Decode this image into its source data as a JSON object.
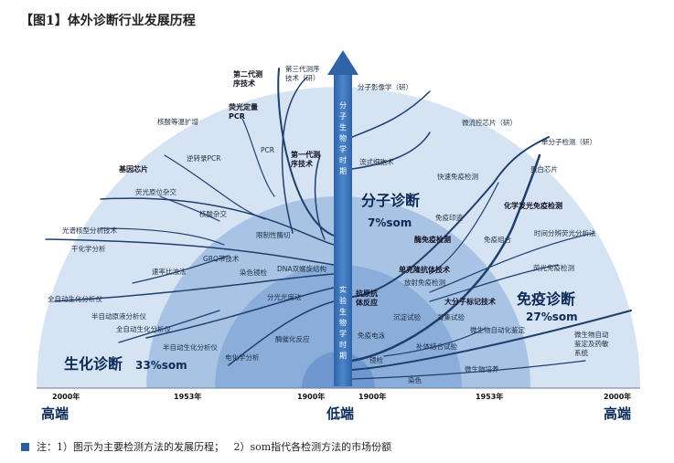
{
  "title": "【图1】体外诊断行业发展历程",
  "note": "注：1）图示为主要检测方法的发展历程；   2）som指代各检测方法的市场份额",
  "axis": {
    "left_year": "2000年",
    "mid_left_year": "1953年",
    "center_left_year": "1900年",
    "center_right_year": "1900年",
    "mid_right_year": "1953年",
    "right_year": "2000年",
    "left_label": "高端",
    "center_label": "低端",
    "right_label": "高端"
  },
  "vertical": {
    "top": "分子生物学时期",
    "bottom": "实验生物学时期"
  },
  "segments": {
    "bio": {
      "name": "生化诊断",
      "share": "33%som"
    },
    "mol": {
      "name": "分子诊断",
      "share": "7%som"
    },
    "imm": {
      "name": "免疫诊断",
      "share": "27%som"
    }
  },
  "left_labels": [
    "第二代测序技术",
    "第三代测序技术（研）",
    "荧光定量PCR",
    "核酸等温扩增",
    "PCR",
    "逆转录PCR",
    "基因芯片",
    "第一代测序技术",
    "荧光原位杂交",
    "核酸杂交",
    "光谱核型分析技术",
    "限制性酶切",
    "干化学分析",
    "GRQ带技术",
    "速率比浊法",
    "染色镜检",
    "DNA双螺旋结构",
    "全自动生化分析仪",
    "分光光度法",
    "半自动原液分析仪",
    "全自动生化分析仪",
    "酶催化反应",
    "半自动生化分析仪",
    "电化学分析"
  ],
  "right_labels": [
    "分子影像学（研）",
    "流式细胞术",
    "微流控芯片（研）",
    "单分子检测（研）",
    "蛋白芯片",
    "快速免疫检测",
    "化学发光免疫检测",
    "免疫印迹",
    "酶免疫检测",
    "免疫组合",
    "时间分辨荧光分析法",
    "荧光免疫检测",
    "单克隆抗体技术",
    "放射免疫检测",
    "大分子标记技术",
    "抗原抗体反应",
    "沉淀试验",
    "凝集试验",
    "免疫电泳",
    "补体结合试验",
    "微生物自动化鉴定",
    "微生物自动鉴定及药敏系统",
    "镜检",
    "微生物培养",
    "染色"
  ]
}
